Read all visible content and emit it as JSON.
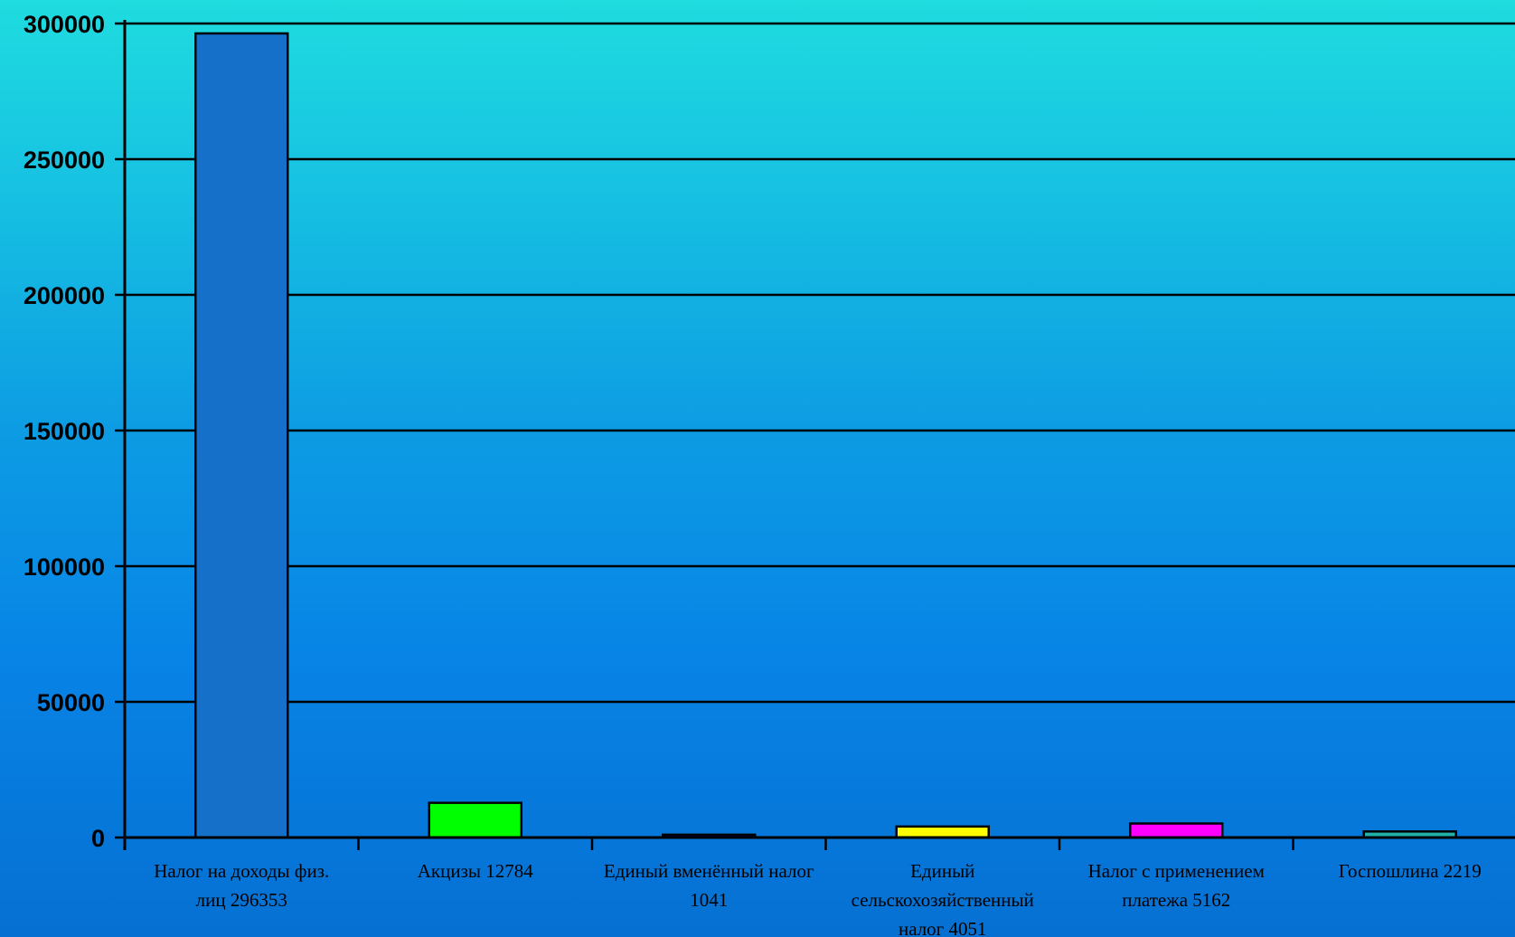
{
  "chart_data": {
    "type": "bar",
    "categories": [
      [
        "Налог на доходы физ.",
        "лиц 296353"
      ],
      [
        "Акцизы 12784"
      ],
      [
        "Единый вменённый налог",
        "1041"
      ],
      [
        "Единый",
        "сельскохозяйственный",
        "налог 4051"
      ],
      [
        "Налог с применением",
        "платежа 5162"
      ],
      [
        "Госпошлина 2219"
      ]
    ],
    "values": [
      296353,
      12784,
      1041,
      4051,
      5162,
      2219
    ],
    "colors": [
      "#1470c8",
      "#00ff00",
      "#000080",
      "#ffff00",
      "#ff00ff",
      "#20b2aa"
    ],
    "ylim": [
      0,
      300000
    ],
    "yticks": [
      0,
      50000,
      100000,
      150000,
      200000,
      250000,
      300000
    ],
    "grid": true
  }
}
